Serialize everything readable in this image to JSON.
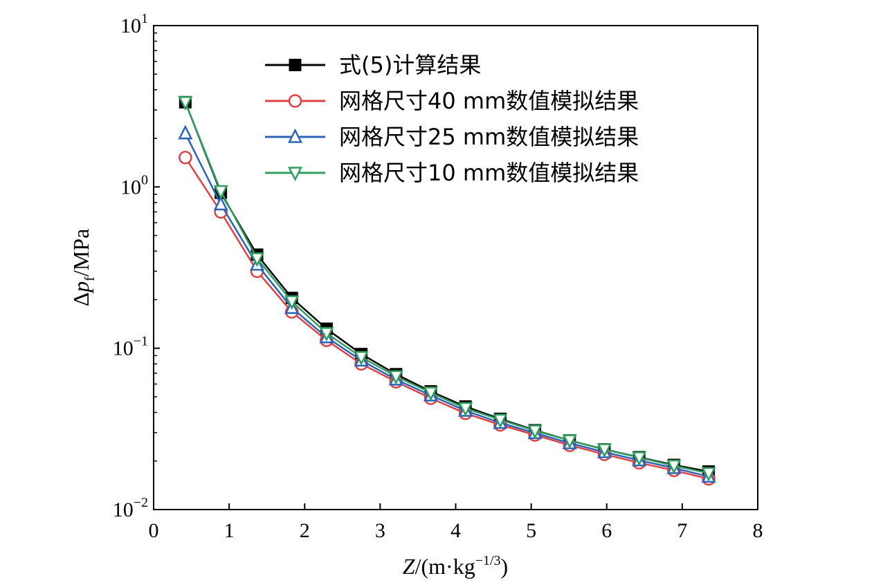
{
  "chart_data": {
    "type": "line",
    "x_axis": {
      "label_var": "Z",
      "label_rest": "/(m·kg",
      "label_exp": "−1/3",
      "label_close": ")",
      "range": [
        0,
        8
      ],
      "ticks": [
        0,
        1,
        2,
        3,
        4,
        5,
        6,
        7,
        8
      ],
      "tick_labels": [
        "0",
        "1",
        "2",
        "3",
        "4",
        "5",
        "6",
        "7",
        "8"
      ]
    },
    "y_axis": {
      "label_delta": "Δ",
      "label_var": "p",
      "label_sub": "f",
      "label_unit": "/MPa",
      "scale": "log",
      "range": [
        0.01,
        10
      ],
      "ticks": [
        0.01,
        0.1,
        1,
        10
      ],
      "tick_labels": [
        {
          "base": "10",
          "exp": "−2"
        },
        {
          "base": "10",
          "exp": "−1"
        },
        {
          "base": "10",
          "exp": "0"
        },
        {
          "base": "10",
          "exp": "1"
        }
      ]
    },
    "grid": false,
    "legend_position": "top-center",
    "x": [
      0.42,
      0.89,
      1.37,
      1.83,
      2.29,
      2.75,
      3.21,
      3.67,
      4.13,
      4.59,
      5.05,
      5.51,
      5.97,
      6.43,
      6.89,
      7.35
    ],
    "series": [
      {
        "name": "式(5)计算结果",
        "color": "#000000",
        "marker": "square",
        "values": [
          3.35,
          0.92,
          0.38,
          0.205,
          0.132,
          0.092,
          0.069,
          0.054,
          0.0435,
          0.0365,
          0.031,
          0.0268,
          0.0236,
          0.0211,
          0.0189,
          0.0172
        ]
      },
      {
        "name": "网格尺寸40 mm数值模拟结果",
        "color": "#e04040",
        "marker": "circle",
        "values": [
          1.52,
          0.7,
          0.3,
          0.168,
          0.112,
          0.08,
          0.062,
          0.049,
          0.0395,
          0.0335,
          0.029,
          0.025,
          0.022,
          0.0195,
          0.0175,
          0.0155
        ]
      },
      {
        "name": "网格尺寸25 mm数值模拟结果",
        "color": "#2a63b8",
        "marker": "triangle-up",
        "values": [
          2.15,
          0.78,
          0.33,
          0.178,
          0.117,
          0.084,
          0.064,
          0.051,
          0.041,
          0.0345,
          0.0298,
          0.0258,
          0.0227,
          0.0202,
          0.0181,
          0.016
        ]
      },
      {
        "name": "网格尺寸10 mm数值模拟结果",
        "color": "#2f9e5e",
        "marker": "triangle-down",
        "values": [
          3.35,
          0.94,
          0.36,
          0.195,
          0.124,
          0.088,
          0.067,
          0.053,
          0.0425,
          0.036,
          0.0308,
          0.0268,
          0.0236,
          0.021,
          0.0187,
          0.0168
        ]
      }
    ]
  }
}
